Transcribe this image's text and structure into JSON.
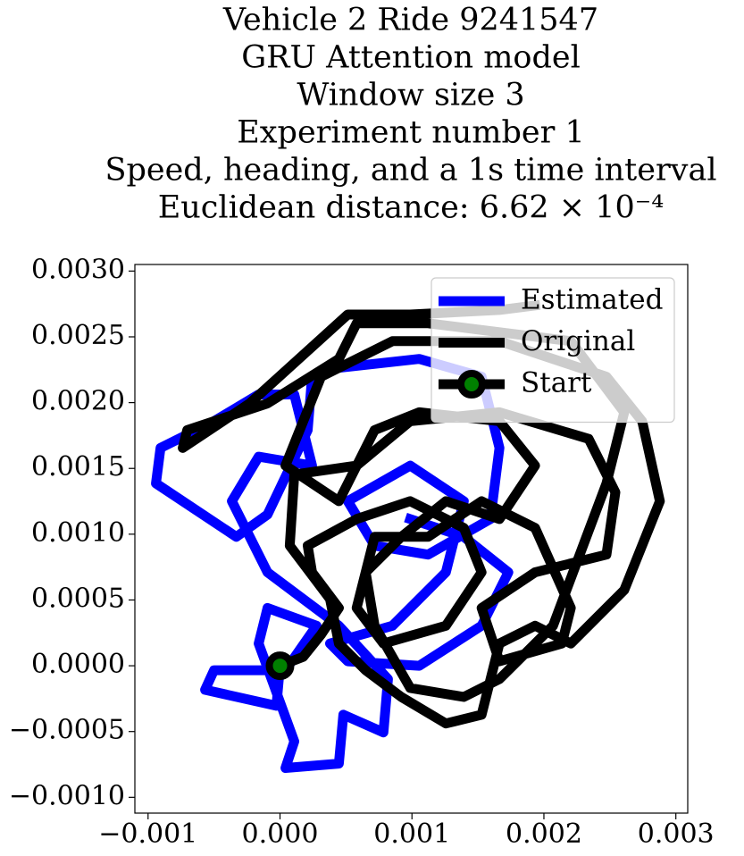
{
  "chart_data": {
    "type": "line",
    "title_lines": [
      "Vehicle 2 Ride 9241547",
      "GRU Attention model",
      "Window size 3",
      "Experiment number 1",
      "Speed, heading, and a 1s time interval",
      "Euclidean distance: 6.62 × 10⁻⁴"
    ],
    "xlim": [
      -0.0011,
      0.00309
    ],
    "ylim": [
      -0.00112,
      0.00305
    ],
    "xticks": [
      {
        "value": -0.001,
        "label": "−0.001"
      },
      {
        "value": 0,
        "label": "0.000"
      },
      0.001,
      0.002,
      0.003
    ],
    "yticks": [
      {
        "value": -0.001,
        "label": "−0.0010"
      },
      {
        "value": -0.0005,
        "label": "−0.0005"
      },
      {
        "value": 0,
        "label": "0.0000"
      },
      0.0005,
      {
        "value": 0.001,
        "label": "0.0010"
      },
      0.0015,
      {
        "value": 0.002,
        "label": "0.0020"
      },
      0.0025,
      {
        "value": 0.003,
        "label": "0.0030"
      }
    ],
    "legend": "upper right",
    "series": [
      {
        "name": "Estimated",
        "color": "#0000ff",
        "x": [
          0,
          -2.7e-05,
          -0.000568,
          -0.0005,
          4.1e-05,
          0.000277,
          -9.5e-05,
          -0.000162,
          0.000108,
          4.1e-05,
          0.000446,
          0.00048,
          0.000784,
          0.000818,
          0.000446,
          -9.5e-05,
          -0.000365,
          -0.000162,
          0.000243,
          0.000108,
          -0.000162,
          -0.0005,
          -0.000906,
          -0.00094,
          -0.000331,
          -9.5e-05,
          0.00021,
          0.000243,
          0.000446,
          0.001055,
          0.001528,
          0.001663,
          0.001595,
          0.001122,
          0.000717,
          0.000514,
          0.000987,
          0.001393,
          0.001257,
          0.000852,
          0.000379,
          0.000514,
          0.001055,
          0.001528,
          0.001731,
          0.001393,
          0.000987
        ],
        "y": [
          0,
          -0.000304,
          -0.000183,
          -3.4e-05,
          -3.4e-05,
          0.000304,
          0.000439,
          0.000169,
          -0.000575,
          -0.000777,
          -0.000744,
          -0.000372,
          -0.000507,
          -0.000101,
          0.000304,
          0.00071,
          0.001251,
          0.001589,
          0.001521,
          0.002062,
          0.002062,
          0.001859,
          0.001656,
          0.001386,
          0.00098,
          0.001149,
          0.001791,
          0.002197,
          0.002265,
          0.002332,
          0.002197,
          0.001656,
          0.001115,
          0.000845,
          0.000913,
          0.001251,
          0.001521,
          0.001251,
          0.00071,
          0.000304,
          0.000169,
          3.4e-05,
          0,
          0.000304,
          0.00071,
          0.00098,
          0.001115
        ]
      },
      {
        "name": "Original",
        "color": "#000000",
        "x": [
          0,
          0.000176,
          0.000311,
          0.000446,
          0.000243,
          0.00021,
          0.000581,
          0.000987,
          0.001393,
          0.001528,
          0.001257,
          0.000784,
          0.000581,
          0.000717,
          0.001122,
          0.001528,
          0.001933,
          0.002204,
          0.002136,
          0.001663,
          0.001528,
          0.001933,
          0.002474,
          0.002542,
          0.002339,
          0.001663,
          0.000987,
          0.000581,
          0.000108,
          7.4e-05,
          0.000379,
          0.000446,
          0.000649,
          0.000919,
          0.001257,
          0.001528,
          0.001663,
          0.001933,
          0.002204,
          0.002609,
          0.002879,
          0.002745,
          0.002474,
          0.001663,
          0.000852,
          0.000311,
          4.1e-05,
          0.000446,
          0.000717,
          0.001055,
          0.001663,
          0.001933,
          0.001663,
          0.001257,
          0.000919,
          0.000649,
          0.000717,
          0.000987,
          0.001393,
          0.001663,
          0.002069,
          0.002474,
          0.002609,
          0.002204,
          0.001122,
          0.000581,
          0.000446,
          -9.5e-05,
          -0.000703,
          -0.000737,
          -0.00023,
          0.000514,
          0.000987,
          0.001663,
          0.001933
        ],
        "y": [
          0,
          6.8e-05,
          0.000237,
          0.000439,
          0.00071,
          0.000913,
          0.001115,
          0.001251,
          0.001048,
          0.00071,
          0.000304,
          0.000169,
          0.000439,
          0.00098,
          0.00098,
          0.001251,
          0.001048,
          0.000439,
          0.000169,
          3.4e-05,
          0.000439,
          0.00071,
          0.000845,
          0.001318,
          0.001724,
          0.001927,
          0.001859,
          0.001521,
          0.001453,
          0.000913,
          0.000507,
          0.000169,
          -3.4e-05,
          -0.000237,
          -0.000439,
          -0.000372,
          0.000169,
          0.000304,
          0.000169,
          0.000575,
          0.001251,
          0.001859,
          0.002197,
          0.002467,
          0.002467,
          0.002197,
          0.001521,
          0.001251,
          0.001791,
          0.001927,
          0.001859,
          0.001521,
          0.001115,
          0.001251,
          0.00098,
          0.00071,
          0.000304,
          -0.000169,
          -0.000237,
          -0.000101,
          0.000304,
          0.001386,
          0.001927,
          0.002467,
          0.002603,
          0.002603,
          0.002332,
          0.001994,
          0.001791,
          0.001656,
          0.001994,
          0.00267,
          0.00267,
          0.002704,
          0.002738
        ]
      },
      {
        "name": "Start",
        "color": "#000000",
        "marker_face": "#008000",
        "x": [
          0
        ],
        "y": [
          0
        ]
      }
    ]
  }
}
